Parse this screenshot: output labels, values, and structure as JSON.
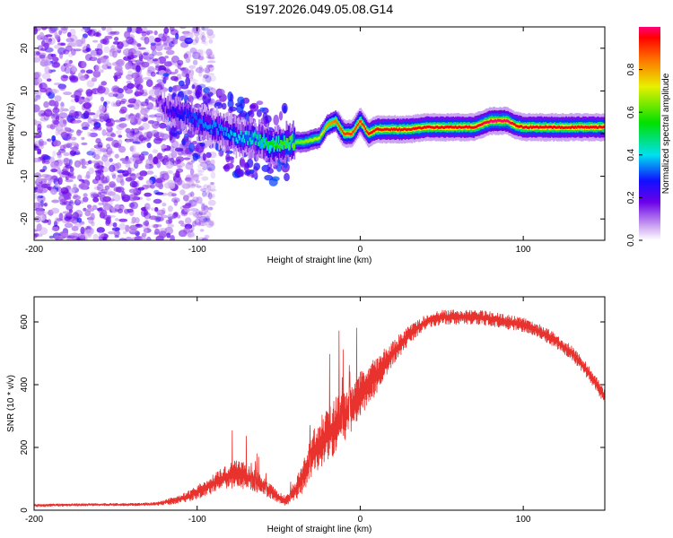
{
  "title": "S197.2026.049.05.08.G14",
  "chart_data": [
    {
      "type": "heatmap",
      "name": "spectrogram",
      "xlabel": "Height of straight line (km)",
      "ylabel": "Frequency (Hz)",
      "xlim": [
        -200,
        150
      ],
      "ylim": [
        -25,
        25
      ],
      "xticks": [
        -200,
        -100,
        0,
        100
      ],
      "yticks": [
        -20,
        -10,
        0,
        10,
        20
      ],
      "colorbar": {
        "label": "Normalized spectral amplitude",
        "range": [
          0,
          1
        ],
        "ticks": [
          0.0,
          0.2,
          0.4,
          0.6,
          0.8
        ]
      },
      "ridge": {
        "x": [
          -125,
          -115,
          -105,
          -95,
          -85,
          -75,
          -65,
          -55,
          -45,
          -35,
          -25,
          -20,
          -15,
          -10,
          -5,
          0,
          5,
          10,
          20,
          30,
          40,
          50,
          60,
          70,
          80,
          85,
          90,
          95,
          100,
          110,
          120,
          130,
          140,
          150
        ],
        "freq": [
          8,
          5,
          4,
          2,
          1,
          -1,
          -1,
          -3,
          -2,
          -2,
          -1,
          2,
          3,
          0,
          0,
          3,
          0,
          1,
          1,
          1,
          1.5,
          1.5,
          1.5,
          1.5,
          3,
          3,
          3,
          2,
          1.5,
          1.5,
          1.5,
          1.5,
          1.5,
          1.5
        ],
        "amplitude": [
          0.15,
          0.25,
          0.3,
          0.35,
          0.35,
          0.4,
          0.45,
          0.55,
          0.6,
          0.65,
          0.7,
          0.8,
          0.85,
          0.9,
          0.9,
          0.9,
          0.95,
          0.95,
          0.95,
          0.95,
          0.95,
          0.95,
          0.95,
          0.95,
          1.0,
          1.0,
          1.0,
          0.95,
          0.95,
          0.95,
          0.95,
          0.95,
          0.95,
          0.95
        ]
      },
      "noise_region_x": [
        -200,
        -105
      ],
      "noise_amplitude_range": [
        0.05,
        0.2
      ]
    },
    {
      "type": "line",
      "name": "snr",
      "xlabel": "Height of straight line (km)",
      "ylabel": "SNR (10 * v/v)",
      "xlim": [
        -200,
        150
      ],
      "ylim": [
        0,
        680
      ],
      "xticks": [
        -200,
        -100,
        0,
        100
      ],
      "yticks": [
        0,
        200,
        400,
        600
      ],
      "color": "#e8322e",
      "envelope": {
        "x": [
          -200,
          -180,
          -160,
          -140,
          -125,
          -115,
          -105,
          -95,
          -85,
          -80,
          -75,
          -70,
          -65,
          -60,
          -55,
          -50,
          -45,
          -40,
          -35,
          -30,
          -25,
          -20,
          -15,
          -10,
          -5,
          0,
          10,
          20,
          30,
          40,
          50,
          60,
          70,
          80,
          90,
          100,
          110,
          120,
          130,
          140,
          150
        ],
        "center": [
          15,
          17,
          18,
          18,
          20,
          30,
          45,
          70,
          100,
          110,
          120,
          105,
          95,
          80,
          60,
          40,
          30,
          60,
          110,
          170,
          210,
          240,
          270,
          300,
          330,
          370,
          430,
          500,
          560,
          600,
          615,
          615,
          615,
          610,
          600,
          590,
          570,
          540,
          500,
          440,
          360
        ],
        "spread": [
          8,
          8,
          8,
          8,
          10,
          20,
          30,
          45,
          60,
          70,
          80,
          70,
          60,
          50,
          40,
          30,
          30,
          60,
          90,
          120,
          140,
          150,
          150,
          140,
          130,
          120,
          100,
          70,
          50,
          40,
          40,
          40,
          40,
          40,
          40,
          40,
          40,
          40,
          40,
          40,
          40
        ]
      }
    }
  ]
}
